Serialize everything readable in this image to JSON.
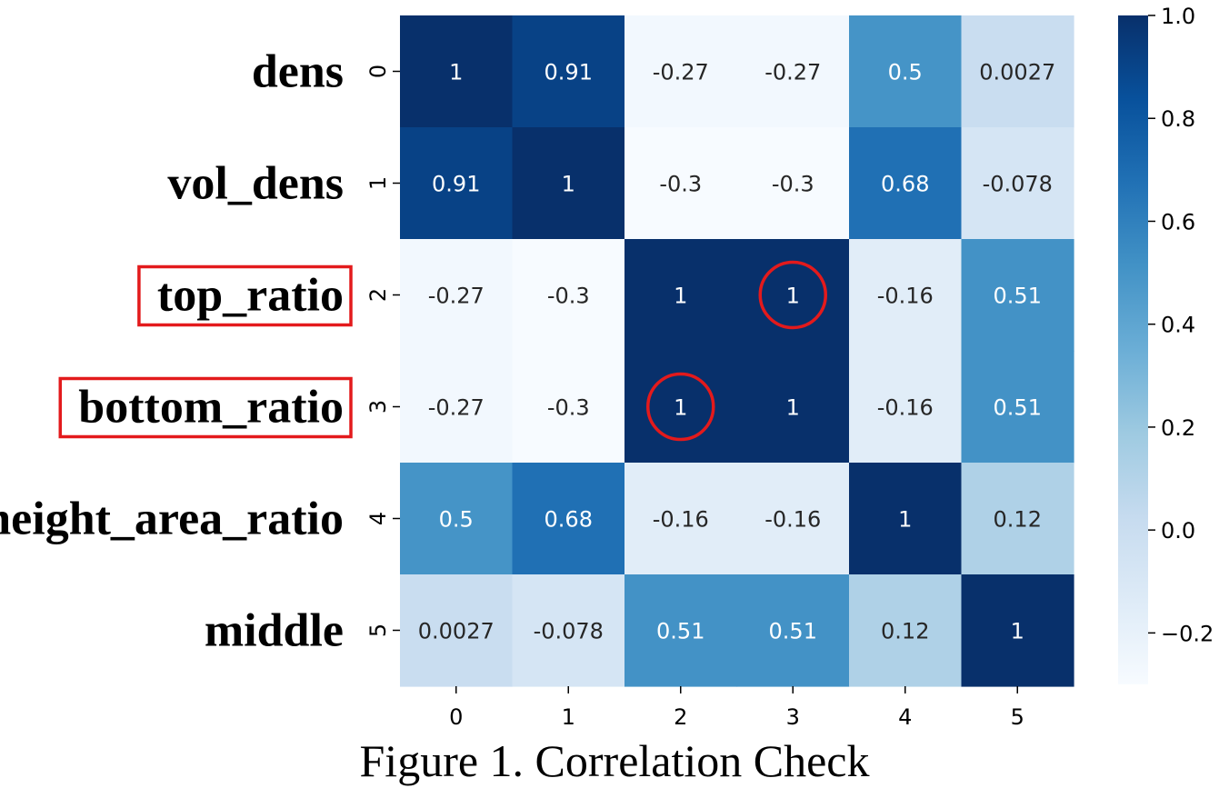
{
  "caption": "Figure 1. Correlation Check",
  "row_names": [
    "dens",
    "vol_dens",
    "top_ratio",
    "bottom_ratio",
    "height_area_ratio",
    "middle"
  ],
  "highlighted_row_names": [
    "top_ratio",
    "bottom_ratio"
  ],
  "highlighted_cells": [
    [
      2,
      3
    ],
    [
      3,
      2
    ]
  ],
  "highlight_color": "#e31a1c",
  "chart_data": {
    "type": "heatmap",
    "x_ticks": [
      "0",
      "1",
      "2",
      "3",
      "4",
      "5"
    ],
    "y_ticks": [
      "0",
      "1",
      "2",
      "3",
      "4",
      "5"
    ],
    "values": [
      [
        1,
        0.91,
        -0.27,
        -0.27,
        0.5,
        0.0027
      ],
      [
        0.91,
        1,
        -0.3,
        -0.3,
        0.68,
        -0.078
      ],
      [
        -0.27,
        -0.3,
        1,
        1,
        -0.16,
        0.51
      ],
      [
        -0.27,
        -0.3,
        1,
        1,
        -0.16,
        0.51
      ],
      [
        0.5,
        0.68,
        -0.16,
        -0.16,
        1,
        0.12
      ],
      [
        0.0027,
        -0.078,
        0.51,
        0.51,
        0.12,
        1
      ]
    ],
    "value_labels": [
      [
        "1",
        "0.91",
        "-0.27",
        "-0.27",
        "0.5",
        "0.0027"
      ],
      [
        "0.91",
        "1",
        "-0.3",
        "-0.3",
        "0.68",
        "-0.078"
      ],
      [
        "-0.27",
        "-0.3",
        "1",
        "1",
        "-0.16",
        "0.51"
      ],
      [
        "-0.27",
        "-0.3",
        "1",
        "1",
        "-0.16",
        "0.51"
      ],
      [
        "0.5",
        "0.68",
        "-0.16",
        "-0.16",
        "1",
        "0.12"
      ],
      [
        "0.0027",
        "-0.078",
        "0.51",
        "0.51",
        "0.12",
        "1"
      ]
    ],
    "colorbar": {
      "min": -0.3,
      "max": 1.0,
      "ticks": [
        1.0,
        0.8,
        0.6,
        0.4,
        0.2,
        0.0,
        -0.2
      ],
      "tick_labels": [
        "1.0",
        "0.8",
        "0.6",
        "0.4",
        "0.2",
        "0.0",
        "−0.2"
      ]
    },
    "colormap": "Blues",
    "colors": [
      "#f7fbff",
      "#deebf7",
      "#c6dbef",
      "#9ecae1",
      "#6baed6",
      "#4292c6",
      "#2171b5",
      "#08519c",
      "#08306b"
    ]
  }
}
